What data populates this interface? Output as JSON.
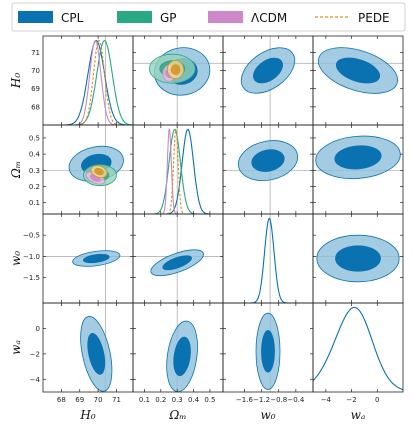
{
  "colors": {
    "cpl": "#0a72b0",
    "cpl_light": "#90c0dc",
    "gp": "#2aa783",
    "gp_light": "#93d2bb",
    "lcdm": "#cc88c8",
    "lcdm_light": "#e3bfe0",
    "pede": "#d6921e",
    "refline": "#a6a6a6",
    "frame": "#222222"
  },
  "legend": {
    "items": [
      {
        "label": "CPL",
        "style": "patch",
        "color": "#0a72b0"
      },
      {
        "label": "GP",
        "style": "patch",
        "color": "#2aa783"
      },
      {
        "label": "ΛCDM",
        "style": "patch",
        "color": "#cc88c8"
      },
      {
        "label": "PEDE",
        "style": "dashed",
        "color": "#d6921e"
      }
    ]
  },
  "chart_data": {
    "type": "corner",
    "parameters": [
      {
        "key": "H0",
        "label": "H₀",
        "range": [
          67.0,
          71.9
        ],
        "ticks": [
          68,
          69,
          70,
          71
        ],
        "tick_labels": [
          "68",
          "69",
          "70",
          "71"
        ],
        "ref": 70.4
      },
      {
        "key": "Om",
        "label": "Ωₘ",
        "range": [
          0.03,
          0.58
        ],
        "ticks": [
          0.1,
          0.2,
          0.3,
          0.4,
          0.5
        ],
        "tick_labels": [
          "0.1",
          "0.2",
          "0.3",
          "0.4",
          "0.5"
        ],
        "ref": 0.3
      },
      {
        "key": "w0",
        "label": "w₀",
        "range": [
          -2.1,
          0.0
        ],
        "ticks": [
          -1.6,
          -1.2,
          -0.8,
          -0.4
        ],
        "tick_labels": [
          "−1.6",
          "−1.2",
          "−0.8",
          "−0.4"
        ],
        "ref": -1.0
      },
      {
        "key": "wa",
        "label": "wₐ",
        "range": [
          -5.0,
          2.0
        ],
        "ticks": [
          -4,
          -2,
          0
        ],
        "tick_labels": [
          "−4",
          "−2",
          "0"
        ],
        "ref": null
      }
    ],
    "y_axis_ticks": {
      "H0": {
        "ticks": [
          68,
          69,
          70,
          71
        ],
        "tick_labels": [
          "68",
          "69",
          "70",
          "71"
        ]
      },
      "Om": {
        "ticks": [
          0.1,
          0.2,
          0.3,
          0.4,
          0.5
        ],
        "tick_labels": [
          "0.1",
          "0.2",
          "0.3",
          "0.4",
          "0.5"
        ]
      },
      "w0": {
        "ticks": [
          -1.5,
          -1.0,
          -0.5
        ],
        "tick_labels": [
          "−1.5",
          "−1.0",
          "−0.5"
        ]
      },
      "wa": {
        "ticks": [
          -4,
          -2,
          0
        ],
        "tick_labels": [
          "−4",
          "−2",
          "0"
        ]
      }
    },
    "marginals": [
      {
        "param": "H0",
        "series": [
          {
            "name": "CPL",
            "mean": 69.9,
            "sd": 0.45,
            "skew": 0,
            "style": "solid"
          },
          {
            "name": "GP",
            "mean": 70.35,
            "sd": 0.42,
            "skew": 0,
            "style": "solid"
          },
          {
            "name": "ΛCDM",
            "mean": 69.85,
            "sd": 0.3,
            "skew": 0,
            "style": "solid"
          },
          {
            "name": "PEDE",
            "mean": 70.05,
            "sd": 0.3,
            "skew": 0,
            "style": "dashed"
          }
        ]
      },
      {
        "param": "Om",
        "series": [
          {
            "name": "CPL",
            "mean": 0.365,
            "sd": 0.035,
            "skew": 0,
            "style": "solid"
          },
          {
            "name": "GP",
            "mean": 0.285,
            "sd": 0.035,
            "skew": 0,
            "style": "solid"
          },
          {
            "name": "ΛCDM",
            "mean": 0.252,
            "sd": 0.012,
            "skew": 0,
            "style": "solid"
          },
          {
            "name": "PEDE",
            "mean": 0.292,
            "sd": 0.014,
            "skew": 0,
            "style": "dashed"
          }
        ]
      },
      {
        "param": "w0",
        "series": [
          {
            "name": "CPL",
            "mean": -1.02,
            "sd": 0.11,
            "skew": 0,
            "style": "solid"
          }
        ]
      },
      {
        "param": "wa",
        "series": [
          {
            "name": "CPL",
            "mean": -0.8,
            "sd": 1.9,
            "skew": -1.3,
            "style": "solid"
          }
        ]
      }
    ],
    "contours": [
      {
        "row": "Om",
        "col": "H0",
        "series": [
          {
            "name": "CPL",
            "cx": 69.9,
            "cy": 0.34,
            "rx": 1.5,
            "ry": 0.105,
            "angle": -12,
            "level": 1
          },
          {
            "name": "GP",
            "cx": 70.1,
            "cy": 0.27,
            "rx": 0.9,
            "ry": 0.065,
            "angle": 0,
            "level": 1
          },
          {
            "name": "ΛCDM",
            "cx": 69.85,
            "cy": 0.252,
            "rx": 0.55,
            "ry": 0.03,
            "angle": 25,
            "level": 1
          },
          {
            "name": "PEDE",
            "cx": 70.05,
            "cy": 0.292,
            "rx": 0.45,
            "ry": 0.035,
            "angle": 20,
            "level": 1
          }
        ]
      },
      {
        "row": "w0",
        "col": "H0",
        "series": [
          {
            "name": "CPL",
            "cx": 69.9,
            "cy": -1.05,
            "rx": 1.3,
            "ry": 0.17,
            "angle": -8,
            "level": 1
          }
        ]
      },
      {
        "row": "w0",
        "col": "Om",
        "series": [
          {
            "name": "CPL",
            "cx": 0.3,
            "cy": -1.15,
            "rx": 0.17,
            "ry": 0.22,
            "angle": -20,
            "level": 1
          }
        ]
      },
      {
        "row": "wa",
        "col": "H0",
        "series": [
          {
            "name": "CPL",
            "cx": 69.9,
            "cy": -2.0,
            "rx": 0.75,
            "ry": 3.0,
            "angle": -12,
            "level": 1
          }
        ]
      },
      {
        "row": "wa",
        "col": "Om",
        "series": [
          {
            "name": "CPL",
            "cx": 0.33,
            "cy": -2.2,
            "rx": 0.09,
            "ry": 2.8,
            "angle": 8,
            "level": 1
          }
        ]
      },
      {
        "row": "wa",
        "col": "w0",
        "series": [
          {
            "name": "CPL",
            "cx": -1.05,
            "cy": -1.8,
            "rx": 0.28,
            "ry": 3.0,
            "angle": 0,
            "level": 1
          }
        ]
      },
      {
        "row": "H0",
        "col": "Om",
        "series": [
          {
            "name": "CPL",
            "cx": 0.33,
            "cy": 69.95,
            "rx": 0.17,
            "ry": 1.3,
            "angle": -10,
            "level": 1
          },
          {
            "name": "GP",
            "cx": 0.27,
            "cy": 70.1,
            "rx": 0.14,
            "ry": 0.8,
            "angle": 0,
            "level": 1
          },
          {
            "name": "ΛCDM",
            "cx": 0.252,
            "cy": 69.85,
            "rx": 0.04,
            "ry": 0.45,
            "angle": 0,
            "level": 1
          },
          {
            "name": "PEDE",
            "cx": 0.29,
            "cy": 70.05,
            "rx": 0.05,
            "ry": 0.5,
            "angle": 0,
            "level": 1
          }
        ]
      },
      {
        "row": "H0",
        "col": "w0",
        "series": [
          {
            "name": "CPL",
            "cx": -1.05,
            "cy": 70.0,
            "rx": 0.7,
            "ry": 1.0,
            "angle": -35,
            "level": 1
          }
        ]
      },
      {
        "row": "H0",
        "col": "wa",
        "series": [
          {
            "name": "CPL",
            "cx": -1.5,
            "cy": 70.0,
            "rx": 3.2,
            "ry": 1.1,
            "angle": 18,
            "level": 1
          }
        ]
      },
      {
        "row": "Om",
        "col": "w0",
        "series": [
          {
            "name": "CPL",
            "cx": -1.05,
            "cy": 0.36,
            "rx": 0.7,
            "ry": 0.12,
            "angle": -12,
            "level": 1
          }
        ]
      },
      {
        "row": "Om",
        "col": "wa",
        "series": [
          {
            "name": "CPL",
            "cx": -1.5,
            "cy": 0.38,
            "rx": 3.3,
            "ry": 0.13,
            "angle": -5,
            "level": 1
          }
        ]
      },
      {
        "row": "w0",
        "col": "wa",
        "series": [
          {
            "name": "CPL",
            "cx": -1.5,
            "cy": -1.05,
            "rx": 3.2,
            "ry": 0.55,
            "angle": 0,
            "level": 1
          }
        ]
      }
    ]
  }
}
